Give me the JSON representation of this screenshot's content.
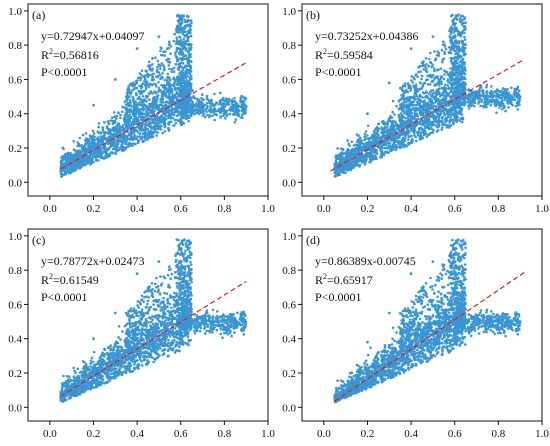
{
  "chart_data": [
    {
      "type": "scatter",
      "panel_label": "(a)",
      "equation": "y=0.72947x+0.04097",
      "r2_prefix": "R",
      "r2_sup": "2",
      "r2_value": "=0.56816",
      "p_value": "P<0.0001",
      "slope": 0.72947,
      "intercept": 0.04097,
      "fit_x_range": [
        0.05,
        0.9
      ],
      "xlim": [
        -0.1,
        1.0
      ],
      "ylim": [
        -0.08,
        1.04
      ],
      "xticks": [
        "0.0",
        "0.2",
        "0.4",
        "0.6",
        "0.8",
        "1.0"
      ],
      "xtick_values": [
        0.0,
        0.2,
        0.4,
        0.6,
        0.8,
        1.0
      ],
      "yticks": [
        "0.0",
        "0.2",
        "0.4",
        "0.6",
        "0.8",
        "1.0"
      ],
      "ytick_values": [
        0.0,
        0.2,
        0.4,
        0.6,
        0.8,
        1.0
      ],
      "point_color": "#3a95d3",
      "fit_color": "#e01b1b",
      "sample_points": [
        [
          0.1,
          0.14
        ],
        [
          0.15,
          0.2
        ],
        [
          0.2,
          0.22
        ],
        [
          0.25,
          0.26
        ],
        [
          0.3,
          0.3
        ],
        [
          0.35,
          0.32
        ],
        [
          0.4,
          0.36
        ],
        [
          0.45,
          0.4
        ],
        [
          0.5,
          0.44
        ],
        [
          0.55,
          0.48
        ],
        [
          0.6,
          0.5
        ],
        [
          0.65,
          0.45
        ],
        [
          0.7,
          0.43
        ],
        [
          0.8,
          0.44
        ],
        [
          0.88,
          0.44
        ],
        [
          0.4,
          0.78
        ],
        [
          0.5,
          0.85
        ],
        [
          0.6,
          0.92
        ],
        [
          0.63,
          0.97
        ],
        [
          0.3,
          0.6
        ],
        [
          0.2,
          0.45
        ],
        [
          0.55,
          0.7
        ],
        [
          0.45,
          0.62
        ],
        [
          0.6,
          0.6
        ],
        [
          0.35,
          0.5
        ],
        [
          0.25,
          0.35
        ],
        [
          0.12,
          0.18
        ],
        [
          0.08,
          0.12
        ],
        [
          0.75,
          0.45
        ],
        [
          0.5,
          0.36
        ]
      ]
    },
    {
      "type": "scatter",
      "panel_label": "(b)",
      "equation": "y=0.73252x+0.04386",
      "r2_prefix": "R",
      "r2_sup": "2",
      "r2_value": "=0.59584",
      "p_value": "P<0.0001",
      "slope": 0.73252,
      "intercept": 0.04386,
      "fit_x_range": [
        0.03,
        0.92
      ],
      "xlim": [
        -0.1,
        1.0
      ],
      "ylim": [
        -0.08,
        1.04
      ],
      "xticks": [
        "0.0",
        "0.2",
        "0.4",
        "0.6",
        "0.8",
        "1.0"
      ],
      "xtick_values": [
        0.0,
        0.2,
        0.4,
        0.6,
        0.8,
        1.0
      ],
      "yticks": [
        "0.0",
        "0.2",
        "0.4",
        "0.6",
        "0.8",
        "1.0"
      ],
      "ytick_values": [
        0.0,
        0.2,
        0.4,
        0.6,
        0.8,
        1.0
      ],
      "point_color": "#3a95d3",
      "fit_color": "#e01b1b",
      "sample_points": [
        [
          0.05,
          0.08
        ],
        [
          0.1,
          0.12
        ],
        [
          0.15,
          0.16
        ],
        [
          0.2,
          0.2
        ],
        [
          0.25,
          0.24
        ],
        [
          0.3,
          0.28
        ],
        [
          0.35,
          0.33
        ],
        [
          0.4,
          0.38
        ],
        [
          0.45,
          0.42
        ],
        [
          0.5,
          0.46
        ],
        [
          0.55,
          0.48
        ],
        [
          0.6,
          0.5
        ],
        [
          0.7,
          0.5
        ],
        [
          0.8,
          0.5
        ],
        [
          0.9,
          0.5
        ],
        [
          0.4,
          0.78
        ],
        [
          0.5,
          0.85
        ],
        [
          0.6,
          0.92
        ],
        [
          0.63,
          0.97
        ],
        [
          0.3,
          0.58
        ],
        [
          0.2,
          0.4
        ],
        [
          0.55,
          0.72
        ],
        [
          0.45,
          0.62
        ],
        [
          0.6,
          0.6
        ],
        [
          0.35,
          0.48
        ],
        [
          0.25,
          0.34
        ],
        [
          0.12,
          0.18
        ],
        [
          0.08,
          0.1
        ],
        [
          0.75,
          0.48
        ],
        [
          0.5,
          0.34
        ]
      ]
    },
    {
      "type": "scatter",
      "panel_label": "(c)",
      "equation": "y=0.78772x+0.02473",
      "r2_prefix": "R",
      "r2_sup": "2",
      "r2_value": "=0.61549",
      "p_value": "P<0.0001",
      "slope": 0.78772,
      "intercept": 0.02473,
      "fit_x_range": [
        0.05,
        0.9
      ],
      "xlim": [
        -0.1,
        1.0
      ],
      "ylim": [
        -0.08,
        1.04
      ],
      "xticks": [
        "0.0",
        "0.2",
        "0.4",
        "0.6",
        "0.8",
        "1.0"
      ],
      "xtick_values": [
        0.0,
        0.2,
        0.4,
        0.6,
        0.8,
        1.0
      ],
      "yticks": [
        "0.0",
        "0.2",
        "0.4",
        "0.6",
        "0.8",
        "1.0"
      ],
      "ytick_values": [
        0.0,
        0.2,
        0.4,
        0.6,
        0.8,
        1.0
      ],
      "point_color": "#3a95d3",
      "fit_color": "#e01b1b",
      "sample_points": [
        [
          0.05,
          0.06
        ],
        [
          0.1,
          0.1
        ],
        [
          0.15,
          0.14
        ],
        [
          0.2,
          0.18
        ],
        [
          0.25,
          0.22
        ],
        [
          0.3,
          0.26
        ],
        [
          0.35,
          0.3
        ],
        [
          0.4,
          0.35
        ],
        [
          0.45,
          0.4
        ],
        [
          0.5,
          0.44
        ],
        [
          0.55,
          0.48
        ],
        [
          0.6,
          0.5
        ],
        [
          0.7,
          0.5
        ],
        [
          0.8,
          0.5
        ],
        [
          0.88,
          0.48
        ],
        [
          0.4,
          0.78
        ],
        [
          0.5,
          0.85
        ],
        [
          0.6,
          0.92
        ],
        [
          0.63,
          0.97
        ],
        [
          0.3,
          0.55
        ],
        [
          0.2,
          0.4
        ],
        [
          0.55,
          0.7
        ],
        [
          0.45,
          0.62
        ],
        [
          0.6,
          0.6
        ],
        [
          0.35,
          0.48
        ],
        [
          0.25,
          0.34
        ],
        [
          0.12,
          0.16
        ],
        [
          0.08,
          0.1
        ],
        [
          0.75,
          0.48
        ],
        [
          0.5,
          0.36
        ]
      ]
    },
    {
      "type": "scatter",
      "panel_label": "(d)",
      "equation": "y=0.86389x-0.00745",
      "r2_prefix": "R",
      "r2_sup": "2",
      "r2_value": "=0.65917",
      "p_value": "P<0.0001",
      "slope": 0.86389,
      "intercept": -0.00745,
      "fit_x_range": [
        0.05,
        0.92
      ],
      "xlim": [
        -0.1,
        1.0
      ],
      "ylim": [
        -0.08,
        1.04
      ],
      "xticks": [
        "0.0",
        "0.2",
        "0.4",
        "0.6",
        "0.8",
        "1.0"
      ],
      "xtick_values": [
        0.0,
        0.2,
        0.4,
        0.6,
        0.8,
        1.0
      ],
      "yticks": [
        "0.0",
        "0.2",
        "0.4",
        "0.6",
        "0.8",
        "1.0"
      ],
      "ytick_values": [
        0.0,
        0.2,
        0.4,
        0.6,
        0.8,
        1.0
      ],
      "point_color": "#3a95d3",
      "fit_color": "#e01b1b",
      "sample_points": [
        [
          0.05,
          0.05
        ],
        [
          0.1,
          0.08
        ],
        [
          0.15,
          0.12
        ],
        [
          0.2,
          0.16
        ],
        [
          0.25,
          0.2
        ],
        [
          0.3,
          0.24
        ],
        [
          0.35,
          0.29
        ],
        [
          0.4,
          0.34
        ],
        [
          0.45,
          0.39
        ],
        [
          0.5,
          0.43
        ],
        [
          0.55,
          0.47
        ],
        [
          0.6,
          0.5
        ],
        [
          0.7,
          0.5
        ],
        [
          0.8,
          0.5
        ],
        [
          0.9,
          0.5
        ],
        [
          0.4,
          0.78
        ],
        [
          0.5,
          0.85
        ],
        [
          0.6,
          0.92
        ],
        [
          0.63,
          0.97
        ],
        [
          0.3,
          0.55
        ],
        [
          0.2,
          0.38
        ],
        [
          0.55,
          0.7
        ],
        [
          0.45,
          0.62
        ],
        [
          0.6,
          0.6
        ],
        [
          0.35,
          0.46
        ],
        [
          0.25,
          0.32
        ],
        [
          0.12,
          0.14
        ],
        [
          0.08,
          0.08
        ],
        [
          0.75,
          0.48
        ],
        [
          0.5,
          0.34
        ]
      ]
    }
  ]
}
